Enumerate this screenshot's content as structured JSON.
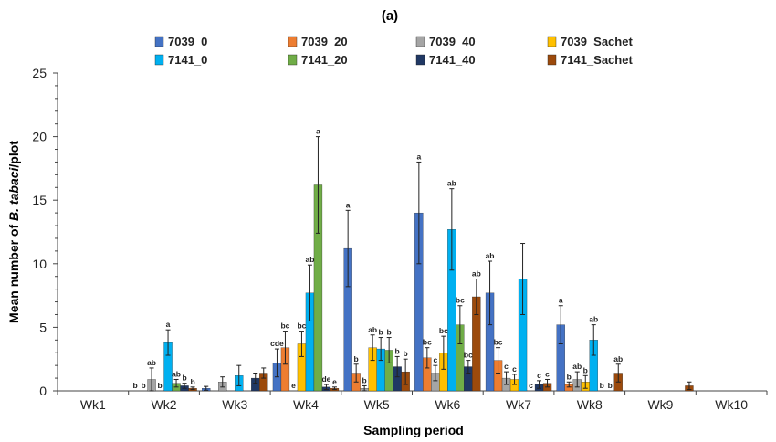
{
  "panel_label": "(a)",
  "chart_data": {
    "type": "bar",
    "xlabel": "Sampling period",
    "ylabel_prefix": "Mean number of ",
    "ylabel_italic": "B. tabaci",
    "ylabel_suffix": "/plot",
    "ylim": [
      0,
      25
    ],
    "yticks": [
      0,
      5,
      10,
      15,
      20,
      25
    ],
    "grid": false,
    "legend_position": "top",
    "categories": [
      "Wk1",
      "Wk2",
      "Wk3",
      "Wk4",
      "Wk5",
      "Wk6",
      "Wk7",
      "Wk8",
      "Wk9",
      "Wk10"
    ],
    "series": [
      {
        "name": "7039_0",
        "color": "#4472C4",
        "values": [
          0,
          0,
          0.2,
          2.2,
          11.2,
          14.0,
          7.7,
          5.2,
          0,
          0
        ],
        "errors": [
          0,
          0,
          0.15,
          1.1,
          3.0,
          4.0,
          2.5,
          1.5,
          0,
          0
        ],
        "labels": [
          "",
          "b",
          "",
          "cde",
          "a",
          "a",
          "ab",
          "a",
          "",
          ""
        ]
      },
      {
        "name": "7039_20",
        "color": "#ED7D31",
        "values": [
          0,
          0,
          0,
          3.4,
          1.4,
          2.6,
          2.4,
          0.5,
          0,
          0
        ],
        "errors": [
          0,
          0,
          0,
          1.3,
          0.7,
          0.8,
          1.0,
          0.2,
          0,
          0
        ],
        "labels": [
          "",
          "b",
          "",
          "bc",
          "b",
          "bc",
          "bc",
          "b",
          "",
          ""
        ]
      },
      {
        "name": "7039_40",
        "color": "#A5A5A5",
        "values": [
          0,
          0.9,
          0.7,
          0,
          0.2,
          1.4,
          1.0,
          0.9,
          0,
          0
        ],
        "errors": [
          0,
          0.9,
          0.4,
          0,
          0.2,
          0.6,
          0.5,
          0.6,
          0,
          0
        ],
        "labels": [
          "",
          "ab",
          "",
          "e",
          "b",
          "c",
          "c",
          "ab",
          "",
          ""
        ]
      },
      {
        "name": "7039_Sachet",
        "color": "#FFC000",
        "values": [
          0,
          0,
          0,
          3.7,
          3.4,
          3.0,
          0.9,
          0.7,
          0,
          0
        ],
        "errors": [
          0,
          0,
          0,
          1.0,
          1.0,
          1.3,
          0.4,
          0.5,
          0,
          0
        ],
        "labels": [
          "",
          "b",
          "",
          "bc",
          "ab",
          "bc",
          "c",
          "b",
          "",
          ""
        ]
      },
      {
        "name": "7141_0",
        "color": "#00B0F0",
        "values": [
          0,
          3.8,
          1.2,
          7.7,
          3.3,
          12.7,
          8.8,
          4.0,
          0,
          0
        ],
        "errors": [
          0,
          1.0,
          0.8,
          2.2,
          0.9,
          3.2,
          2.8,
          1.2,
          0,
          0
        ],
        "labels": [
          "",
          "a",
          "",
          "ab",
          "b",
          "ab",
          "",
          "ab",
          "",
          ""
        ]
      },
      {
        "name": "7141_20",
        "color": "#70AD47",
        "values": [
          0,
          0.6,
          0,
          16.2,
          3.2,
          5.2,
          0,
          0,
          0,
          0
        ],
        "errors": [
          0,
          0.3,
          0,
          3.8,
          1.0,
          1.5,
          0,
          0,
          0,
          0
        ],
        "labels": [
          "",
          "ab",
          "",
          "a",
          "b",
          "bc",
          "c",
          "b",
          "",
          ""
        ]
      },
      {
        "name": "7141_40",
        "color": "#203864",
        "values": [
          0,
          0.4,
          1.0,
          0.3,
          1.9,
          1.9,
          0.5,
          0,
          0,
          0
        ],
        "errors": [
          0,
          0.2,
          0.4,
          0.2,
          0.8,
          0.5,
          0.3,
          0,
          0,
          0
        ],
        "labels": [
          "",
          "b",
          "",
          "de",
          "b",
          "bc",
          "c",
          "b",
          "",
          ""
        ]
      },
      {
        "name": "7141_Sachet",
        "color": "#9C4A0C",
        "values": [
          0,
          0.2,
          1.4,
          0.2,
          1.5,
          7.4,
          0.6,
          1.4,
          0.4,
          0
        ],
        "errors": [
          0,
          0.1,
          0.4,
          0.1,
          1.0,
          1.4,
          0.3,
          0.7,
          0.3,
          0
        ],
        "labels": [
          "",
          "b",
          "",
          "e",
          "b",
          "ab",
          "c",
          "ab",
          "",
          ""
        ]
      }
    ]
  }
}
